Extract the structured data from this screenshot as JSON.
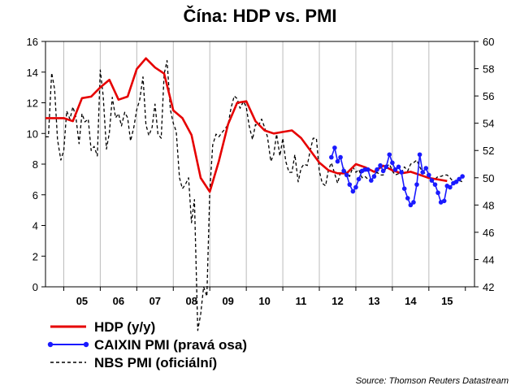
{
  "chart_data": {
    "type": "line",
    "title": "Čína: HDP vs. PMI",
    "source": "Source: Thomson Reuters Datastream",
    "x_tick_labels": [
      "05",
      "06",
      "07",
      "08",
      "09",
      "10",
      "11",
      "12",
      "13",
      "14",
      "15"
    ],
    "x_range": [
      2004.5,
      2016.25
    ],
    "left_axis": {
      "ylim": [
        0,
        16
      ],
      "ticks": [
        0,
        2,
        4,
        6,
        8,
        10,
        12,
        14,
        16
      ]
    },
    "right_axis": {
      "ylim": [
        42,
        60
      ],
      "ticks": [
        42,
        44,
        46,
        48,
        50,
        52,
        54,
        56,
        58,
        60
      ]
    },
    "grid": "vertical-only",
    "legend_position": "bottom-left",
    "colors": {
      "gdp": "#e60000",
      "caixin": "#1a1aff",
      "nbs": "#000000"
    },
    "series": [
      {
        "name": "HDP (y/y)",
        "axis": "left",
        "style": "solid",
        "x": [
          2004.5,
          2005.0,
          2005.25,
          2005.5,
          2005.75,
          2006.0,
          2006.25,
          2006.5,
          2006.75,
          2007.0,
          2007.25,
          2007.5,
          2007.75,
          2008.0,
          2008.25,
          2008.5,
          2008.75,
          2009.0,
          2009.25,
          2009.5,
          2009.75,
          2010.0,
          2010.25,
          2010.5,
          2010.75,
          2011.0,
          2011.25,
          2011.5,
          2011.75,
          2012.0,
          2012.25,
          2012.5,
          2012.75,
          2013.0,
          2013.25,
          2013.5,
          2013.75,
          2014.0,
          2014.25,
          2014.5,
          2014.75,
          2015.0,
          2015.25,
          2015.5
        ],
        "values": [
          11.0,
          11.0,
          10.8,
          12.3,
          12.4,
          13.0,
          13.5,
          12.2,
          12.4,
          14.2,
          14.9,
          14.3,
          13.9,
          11.5,
          11.0,
          9.9,
          7.1,
          6.2,
          8.2,
          10.6,
          12.0,
          12.1,
          10.8,
          10.2,
          10.0,
          10.1,
          10.2,
          9.7,
          8.9,
          8.1,
          7.6,
          7.4,
          7.4,
          8.0,
          7.8,
          7.5,
          7.9,
          7.6,
          7.4,
          7.5,
          7.3,
          7.1,
          7.0,
          6.9
        ]
      },
      {
        "name": "CAIXIN PMI (pravá osa)",
        "axis": "right",
        "style": "solid-markers",
        "x": [
          2012.33,
          2012.42,
          2012.5,
          2012.58,
          2012.67,
          2012.75,
          2012.83,
          2012.92,
          2013.0,
          2013.08,
          2013.17,
          2013.25,
          2013.33,
          2013.42,
          2013.5,
          2013.58,
          2013.67,
          2013.75,
          2013.83,
          2013.92,
          2014.0,
          2014.08,
          2014.17,
          2014.25,
          2014.33,
          2014.42,
          2014.5,
          2014.58,
          2014.67,
          2014.75,
          2014.83,
          2014.92,
          2015.0,
          2015.08,
          2015.17,
          2015.25,
          2015.33,
          2015.42,
          2015.5,
          2015.58,
          2015.67,
          2015.75,
          2015.83,
          2015.92
        ],
        "values": [
          51.5,
          52.2,
          51.2,
          51.5,
          50.5,
          50.2,
          49.5,
          49.0,
          49.3,
          49.9,
          50.5,
          50.6,
          50.6,
          49.8,
          50.1,
          50.6,
          50.9,
          50.5,
          50.8,
          51.7,
          51.1,
          50.6,
          50.8,
          50.4,
          49.2,
          48.5,
          48.0,
          48.2,
          49.5,
          51.7,
          50.4,
          50.7,
          50.2,
          49.8,
          49.5,
          48.9,
          48.2,
          48.3,
          49.4,
          49.3,
          49.6,
          49.7,
          49.9,
          50.1
        ]
      },
      {
        "name": "NBS PMI (oficiální)",
        "axis": "right",
        "style": "dashed",
        "x": [
          2004.5,
          2004.58,
          2004.67,
          2004.75,
          2004.83,
          2004.92,
          2005.0,
          2005.08,
          2005.17,
          2005.25,
          2005.33,
          2005.42,
          2005.5,
          2005.58,
          2005.67,
          2005.75,
          2005.83,
          2005.92,
          2006.0,
          2006.08,
          2006.17,
          2006.25,
          2006.33,
          2006.42,
          2006.5,
          2006.58,
          2006.67,
          2006.75,
          2006.83,
          2006.92,
          2007.0,
          2007.08,
          2007.17,
          2007.25,
          2007.33,
          2007.42,
          2007.5,
          2007.58,
          2007.67,
          2007.75,
          2007.83,
          2007.92,
          2008.0,
          2008.08,
          2008.17,
          2008.25,
          2008.33,
          2008.42,
          2008.5,
          2008.58,
          2008.67,
          2008.75,
          2008.83,
          2008.92,
          2009.0,
          2009.08,
          2009.17,
          2009.25,
          2009.33,
          2009.42,
          2009.5,
          2009.58,
          2009.67,
          2009.75,
          2009.83,
          2009.92,
          2010.0,
          2010.08,
          2010.17,
          2010.25,
          2010.33,
          2010.42,
          2010.5,
          2010.58,
          2010.67,
          2010.75,
          2010.83,
          2010.92,
          2011.0,
          2011.08,
          2011.17,
          2011.25,
          2011.33,
          2011.42,
          2011.5,
          2011.58,
          2011.67,
          2011.75,
          2011.83,
          2011.92,
          2012.0,
          2012.08,
          2012.17,
          2012.25,
          2012.33,
          2012.42,
          2012.5,
          2012.58,
          2012.67,
          2012.75,
          2012.83,
          2012.92,
          2013.0,
          2013.08,
          2013.17,
          2013.25,
          2013.33,
          2013.42,
          2013.5,
          2013.58,
          2013.67,
          2013.75,
          2013.83,
          2013.92,
          2014.0,
          2014.08,
          2014.17,
          2014.25,
          2014.33,
          2014.42,
          2014.5,
          2014.58,
          2014.67,
          2014.75,
          2014.83,
          2014.92,
          2015.0,
          2015.08,
          2015.17,
          2015.25,
          2015.33,
          2015.42,
          2015.5,
          2015.58,
          2015.67,
          2015.75,
          2015.83,
          2015.92
        ],
        "values": [
          53.0,
          53.0,
          57.7,
          56.5,
          52.8,
          51.3,
          52.0,
          54.9,
          54.3,
          55.2,
          54.5,
          52.5,
          54.7,
          54.1,
          54.3,
          52.0,
          52.3,
          51.6,
          57.9,
          56.0,
          52.1,
          53.3,
          55.9,
          54.4,
          54.7,
          53.8,
          54.8,
          54.4,
          52.7,
          53.7,
          55.0,
          55.7,
          57.4,
          53.9,
          53.1,
          53.7,
          55.4,
          53.2,
          52.9,
          57.6,
          58.6,
          55.0,
          54.0,
          53.4,
          50.0,
          49.2,
          49.5,
          50.0,
          46.7,
          48.4,
          38.8,
          40.0,
          42.0,
          41.3,
          49.0,
          52.4,
          53.2,
          53.0,
          53.3,
          53.6,
          53.9,
          55.1,
          56.0,
          55.8,
          55.1,
          55.6,
          55.2,
          53.8,
          52.8,
          53.9,
          53.8,
          54.3,
          53.7,
          53.0,
          51.2,
          51.7,
          53.2,
          51.6,
          52.9,
          51.2,
          50.4,
          50.4,
          51.7,
          49.7,
          50.7,
          51.0,
          50.9,
          52.0,
          52.9,
          52.9,
          50.5,
          49.6,
          49.4,
          50.6,
          51.1,
          50.3,
          49.6,
          50.4,
          50.7,
          50.3,
          50.1,
          50.8,
          50.4,
          50.6,
          50.0,
          50.1,
          49.9,
          49.8,
          49.9,
          50.4,
          50.2,
          50.2,
          50.8,
          51.0,
          50.5,
          50.2,
          50.3,
          50.4,
          50.8,
          50.5,
          51.0,
          51.1,
          51.3,
          50.8,
          50.4,
          50.3,
          50.1,
          49.8,
          49.9,
          50.1,
          50.1,
          50.2,
          50.2,
          50.0,
          49.7,
          49.8,
          49.8,
          49.7
        ]
      }
    ]
  }
}
